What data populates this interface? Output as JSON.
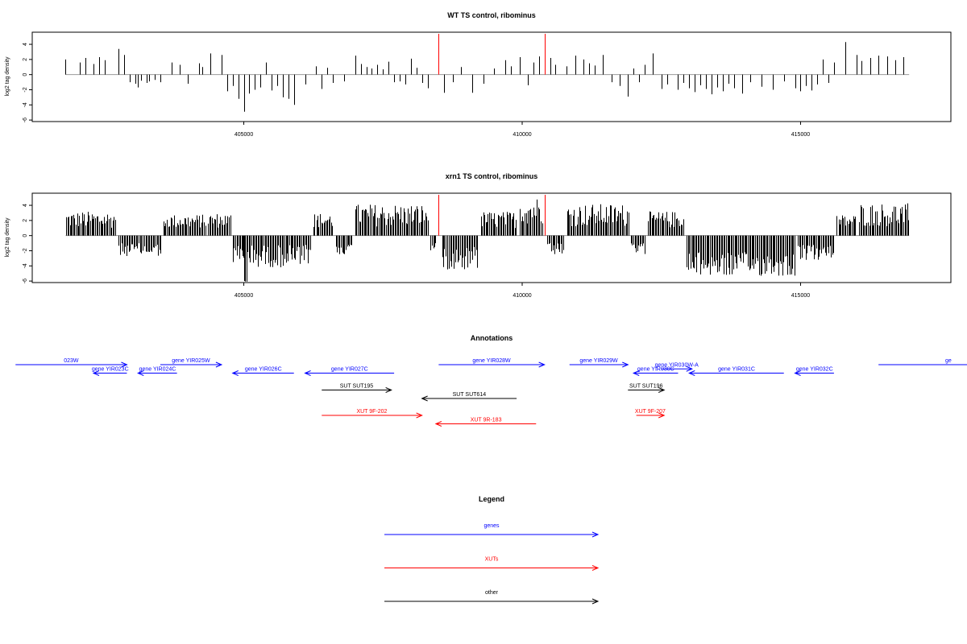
{
  "chart_data": [
    {
      "type": "bar",
      "title": "WT TS control, ribominus",
      "ylabel": "log2 tag density",
      "xlabel": "",
      "xlim": [
        401200,
        417700
      ],
      "ylim": [
        -6.2,
        5.6
      ],
      "x_ticks": [
        405000,
        410000,
        415000
      ],
      "y_ticks": [
        -6,
        -4,
        -2,
        0,
        2,
        4
      ],
      "marker_lines": {
        "color": "#ff0000",
        "x": [
          408500,
          410400
        ]
      },
      "bar_color": "#000000",
      "baseline_color": "#999999",
      "series": [
        {
          "x": [
            401800,
            402050,
            402150,
            402300,
            402400,
            402500,
            402750,
            402850,
            402950,
            403050,
            403100,
            403150,
            403250,
            403300,
            403400,
            403500,
            403700,
            403850,
            404000,
            404200,
            404250,
            404400,
            404600,
            404700,
            404800,
            404900,
            405000,
            405100,
            405200,
            405300,
            405400,
            405500,
            405600,
            405700,
            405800,
            405900,
            406100,
            406300,
            406400,
            406500,
            406600,
            406800,
            407000,
            407100,
            407200,
            407300,
            407400,
            407500,
            407600,
            407700,
            407800,
            407900,
            408000,
            408100,
            408200,
            408300,
            408600,
            408750,
            408900,
            409100,
            409300,
            409500,
            409700,
            409800,
            409950,
            410100,
            410200,
            410300,
            410500,
            410600,
            410800,
            410950,
            411100,
            411200,
            411300,
            411450,
            411600,
            411750,
            411900,
            412000,
            412100,
            412200,
            412350,
            412500,
            412600,
            412800,
            412900,
            413000,
            413100,
            413200,
            413300,
            413400,
            413500,
            413600,
            413700,
            413800,
            413950,
            414100,
            414300,
            414500,
            414700,
            414900,
            415000,
            415100,
            415200,
            415300,
            415400,
            415500,
            415600,
            415800,
            416000,
            416100,
            416250,
            416400,
            416550,
            416700,
            416850
          ],
          "y": [
            2.0,
            1.6,
            2.2,
            1.4,
            2.3,
            1.9,
            3.4,
            2.6,
            -1.0,
            -1.2,
            -1.7,
            -0.8,
            -1.1,
            -0.9,
            -0.7,
            -1.0,
            1.6,
            1.3,
            -1.2,
            1.5,
            1.0,
            2.8,
            2.6,
            -2.2,
            -1.5,
            -3.2,
            -4.9,
            -2.5,
            -2.0,
            -1.7,
            1.6,
            -2.1,
            -1.5,
            -3.0,
            -3.2,
            -4.0,
            -1.3,
            1.1,
            -1.9,
            0.9,
            -1.1,
            -0.9,
            2.5,
            1.4,
            1.0,
            0.8,
            1.3,
            0.7,
            1.7,
            -1.0,
            -0.9,
            -1.3,
            2.1,
            0.9,
            -1.1,
            -1.8,
            -2.4,
            -1.0,
            1.0,
            -2.4,
            -1.2,
            0.8,
            1.9,
            1.1,
            2.3,
            -1.4,
            1.6,
            2.4,
            2.2,
            1.3,
            1.1,
            2.5,
            2.0,
            1.5,
            1.2,
            2.6,
            -1.0,
            -1.5,
            -2.9,
            0.8,
            -1.0,
            1.3,
            2.8,
            -1.9,
            -1.3,
            -2.0,
            -1.1,
            -1.8,
            -2.3,
            -1.4,
            -1.9,
            -2.6,
            -1.7,
            -2.2,
            -1.2,
            -1.8,
            -2.5,
            -1.0,
            -1.6,
            -2.0,
            -0.9,
            -1.8,
            -2.2,
            -1.5,
            -2.1,
            -1.3,
            2.0,
            -1.1,
            1.6,
            4.3,
            2.6,
            1.8,
            2.2,
            2.5,
            2.4,
            1.9,
            2.3
          ]
        }
      ]
    },
    {
      "type": "bar",
      "title": "xrn1 TS control, ribominus",
      "ylabel": "log2 tag density",
      "xlabel": "",
      "xlim": [
        401200,
        417700
      ],
      "ylim": [
        -6.2,
        5.6
      ],
      "x_ticks": [
        405000,
        410000,
        415000
      ],
      "y_ticks": [
        -6,
        -4,
        -2,
        0,
        2,
        4
      ],
      "marker_lines": {
        "color": "#ff0000",
        "x": [
          408500,
          410400
        ]
      },
      "bar_color": "#000000",
      "baseline_color": "#999999",
      "segments": [
        {
          "from": 401800,
          "to": 402700,
          "sign": 1,
          "min": 1.0,
          "max": 3.2
        },
        {
          "from": 402750,
          "to": 403500,
          "sign": -1,
          "min": 1.0,
          "max": 2.7
        },
        {
          "from": 403550,
          "to": 404300,
          "sign": 1,
          "min": 1.0,
          "max": 2.8
        },
        {
          "from": 404350,
          "to": 404750,
          "sign": 1,
          "min": 1.0,
          "max": 3.0
        },
        {
          "from": 404800,
          "to": 406200,
          "sign": -1,
          "min": 1.2,
          "max": 4.2
        },
        {
          "from": 405000,
          "to": 405050,
          "sign": -1,
          "min": 6.0,
          "max": 6.2
        },
        {
          "from": 406250,
          "to": 406600,
          "sign": 1,
          "min": 1.0,
          "max": 3.0
        },
        {
          "from": 406650,
          "to": 406950,
          "sign": -1,
          "min": 1.0,
          "max": 2.5
        },
        {
          "from": 407000,
          "to": 408300,
          "sign": 1,
          "min": 1.2,
          "max": 4.2
        },
        {
          "from": 408350,
          "to": 408450,
          "sign": -1,
          "min": 1.0,
          "max": 2.0
        },
        {
          "from": 408550,
          "to": 409200,
          "sign": -1,
          "min": 1.2,
          "max": 4.5
        },
        {
          "from": 409250,
          "to": 409900,
          "sign": 1,
          "min": 1.0,
          "max": 3.2
        },
        {
          "from": 409950,
          "to": 410350,
          "sign": 1,
          "min": 1.5,
          "max": 5.2
        },
        {
          "from": 410450,
          "to": 410750,
          "sign": -1,
          "min": 1.0,
          "max": 2.6
        },
        {
          "from": 410800,
          "to": 411900,
          "sign": 1,
          "min": 1.2,
          "max": 4.2
        },
        {
          "from": 411950,
          "to": 412200,
          "sign": -1,
          "min": 1.0,
          "max": 2.6
        },
        {
          "from": 412250,
          "to": 412900,
          "sign": 1,
          "min": 1.0,
          "max": 3.2
        },
        {
          "from": 412950,
          "to": 414900,
          "sign": -1,
          "min": 2.2,
          "max": 5.4
        },
        {
          "from": 414950,
          "to": 415600,
          "sign": -1,
          "min": 1.2,
          "max": 3.3
        },
        {
          "from": 415650,
          "to": 416000,
          "sign": 1,
          "min": 1.0,
          "max": 2.8
        },
        {
          "from": 416050,
          "to": 416950,
          "sign": 1,
          "min": 1.2,
          "max": 4.3
        }
      ]
    }
  ],
  "annotations": {
    "title": "Annotations",
    "colors": {
      "gene": "#0000ff",
      "sut": "#000000",
      "xut": "#ff0000"
    },
    "items": [
      {
        "label": "023W",
        "kind": "gene",
        "strand": "+",
        "start": 400900,
        "end": 402900,
        "row": 0
      },
      {
        "label": "gene YIR023C",
        "kind": "gene",
        "strand": "-",
        "start": 402300,
        "end": 402900,
        "row": 1
      },
      {
        "label": "gene YIR024C",
        "kind": "gene",
        "strand": "-",
        "start": 403100,
        "end": 403800,
        "row": 1
      },
      {
        "label": "gene YIR025W",
        "kind": "gene",
        "strand": "+",
        "start": 403500,
        "end": 404600,
        "row": 0
      },
      {
        "label": "gene YIR026C",
        "kind": "gene",
        "strand": "-",
        "start": 404800,
        "end": 405900,
        "row": 1
      },
      {
        "label": "gene YIR027C",
        "kind": "gene",
        "strand": "-",
        "start": 406100,
        "end": 407700,
        "row": 1
      },
      {
        "label": "gene YIR028W",
        "kind": "gene",
        "strand": "+",
        "start": 408500,
        "end": 410400,
        "row": 0
      },
      {
        "label": "gene YIR029W",
        "kind": "gene",
        "strand": "+",
        "start": 410850,
        "end": 411900,
        "row": 0
      },
      {
        "label": "gene YIR030C",
        "kind": "gene",
        "strand": "-",
        "start": 412000,
        "end": 412800,
        "row": 1
      },
      {
        "label": "gene YIR030W-A",
        "kind": "gene",
        "strand": "+",
        "start": 412500,
        "end": 413050,
        "row": 0.5
      },
      {
        "label": "gene YIR031C",
        "kind": "gene",
        "strand": "-",
        "start": 413000,
        "end": 414700,
        "row": 1
      },
      {
        "label": "gene YIR032C",
        "kind": "gene",
        "strand": "-",
        "start": 414900,
        "end": 415600,
        "row": 1
      },
      {
        "label": "ge",
        "kind": "gene",
        "strand": "+",
        "start": 416400,
        "end": 418500,
        "row": 0
      },
      {
        "label": "SUT SUT195",
        "kind": "sut",
        "strand": "+",
        "start": 406400,
        "end": 407650,
        "row": 3
      },
      {
        "label": "SUT SUT614",
        "kind": "sut",
        "strand": "-",
        "start": 408200,
        "end": 409900,
        "row": 4
      },
      {
        "label": "SUT SUT196",
        "kind": "sut",
        "strand": "+",
        "start": 411900,
        "end": 412550,
        "row": 3
      },
      {
        "label": "XUT 9F-202",
        "kind": "xut",
        "strand": "+",
        "start": 406400,
        "end": 408200,
        "row": 6
      },
      {
        "label": "XUT 9R-183",
        "kind": "xut",
        "strand": "-",
        "start": 408450,
        "end": 410250,
        "row": 7
      },
      {
        "label": "XUT 9F-207",
        "kind": "xut",
        "strand": "+",
        "start": 412050,
        "end": 412550,
        "row": 6
      }
    ]
  },
  "legend": {
    "title": "Legend",
    "items": [
      {
        "label": "genes",
        "color": "#0000ff"
      },
      {
        "label": "XUTs",
        "color": "#ff0000"
      },
      {
        "label": "other",
        "color": "#000000"
      }
    ]
  }
}
